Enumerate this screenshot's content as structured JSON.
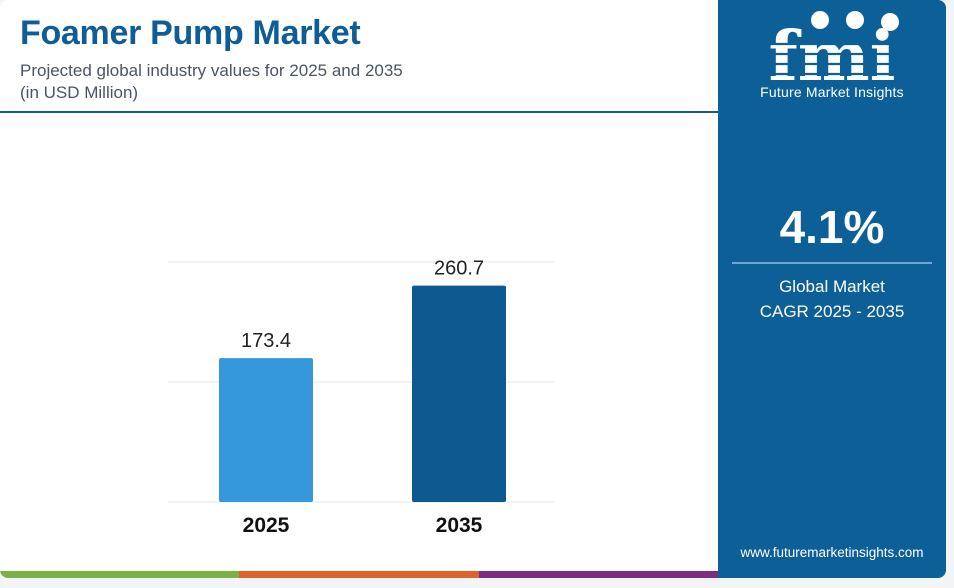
{
  "header": {
    "title": "Foamer Pump Market",
    "subtitle_line1": "Projected global industry values for 2025 and 2035",
    "subtitle_line2": "(in USD Million)"
  },
  "chart_data": {
    "type": "bar",
    "categories": [
      "2025",
      "2035"
    ],
    "values": [
      173.4,
      260.7
    ],
    "data_labels": [
      "173.4",
      "260.7"
    ],
    "bar_colors": [
      "#3597dc",
      "#0d5a90"
    ],
    "ylim": [
      0,
      300
    ],
    "grid": true,
    "xlabel": "",
    "ylabel": ""
  },
  "sidebar": {
    "logo_letters": "fmi",
    "logo_text": "Future Market Insights",
    "cagr_value": "4.1%",
    "cagr_label_line1": "Global Market",
    "cagr_label_line2": "CAGR 2025 - 2035",
    "website": "www.futuremarketinsights.com"
  },
  "colors": {
    "brand_blue": "#0f5d97",
    "panel_blue": "#0d5f97",
    "stripe_green": "#7bb243",
    "stripe_orange": "#e0612c",
    "stripe_purple": "#7e2b81"
  }
}
